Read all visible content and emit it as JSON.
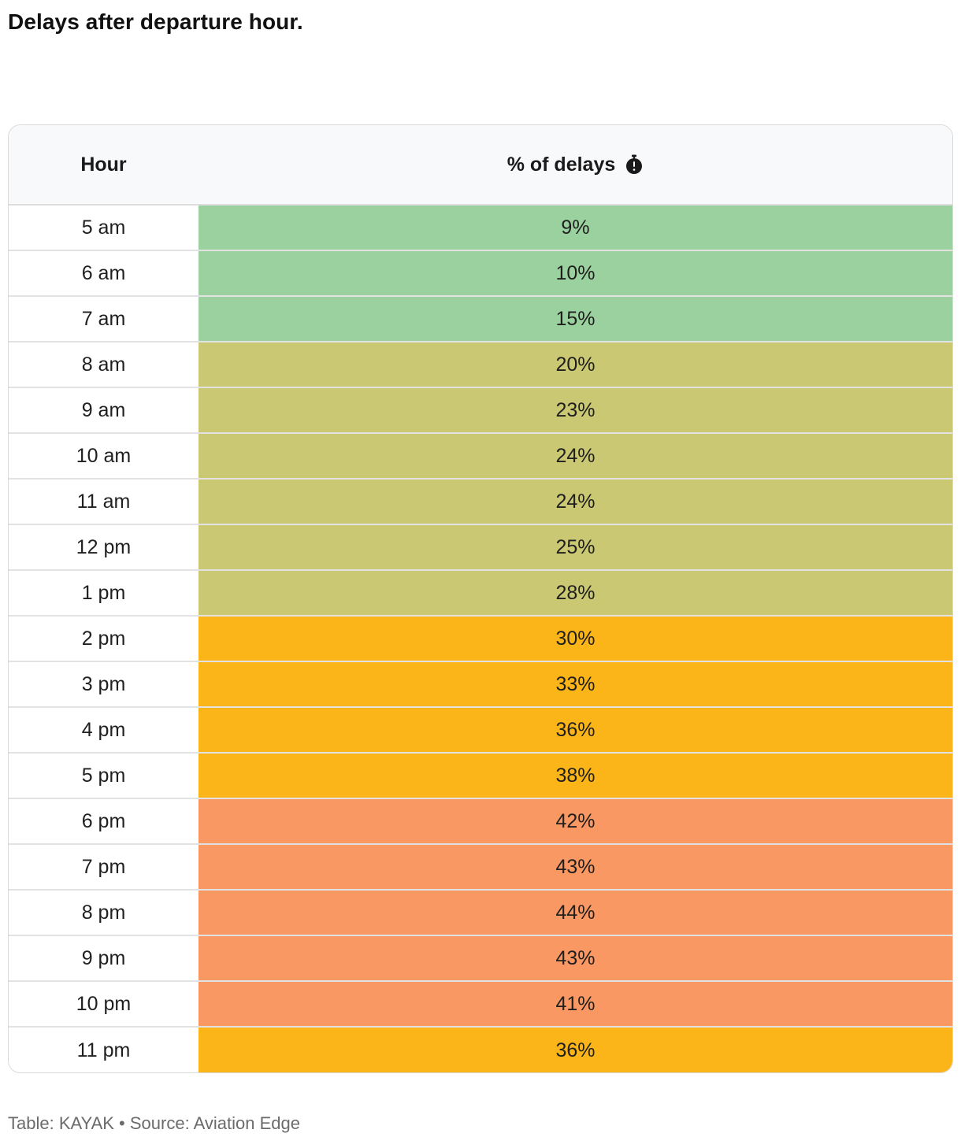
{
  "title": "Delays after departure hour.",
  "table": {
    "headers": {
      "hour": "Hour",
      "pct": "% of delays",
      "pct_icon": "stopwatch-icon"
    }
  },
  "colors": {
    "low": "#9ad19e",
    "medium": "#cac873",
    "high": "#fbb518",
    "very_high": "#fa9864"
  },
  "chart_data": {
    "type": "table",
    "title": "Delays after departure hour.",
    "columns": [
      "Hour",
      "% of delays"
    ],
    "rows": [
      {
        "hour": "5 am",
        "value": 9,
        "label": "9%",
        "band": "low"
      },
      {
        "hour": "6 am",
        "value": 10,
        "label": "10%",
        "band": "low"
      },
      {
        "hour": "7 am",
        "value": 15,
        "label": "15%",
        "band": "low"
      },
      {
        "hour": "8 am",
        "value": 20,
        "label": "20%",
        "band": "medium"
      },
      {
        "hour": "9 am",
        "value": 23,
        "label": "23%",
        "band": "medium"
      },
      {
        "hour": "10 am",
        "value": 24,
        "label": "24%",
        "band": "medium"
      },
      {
        "hour": "11 am",
        "value": 24,
        "label": "24%",
        "band": "medium"
      },
      {
        "hour": "12 pm",
        "value": 25,
        "label": "25%",
        "band": "medium"
      },
      {
        "hour": "1 pm",
        "value": 28,
        "label": "28%",
        "band": "medium"
      },
      {
        "hour": "2 pm",
        "value": 30,
        "label": "30%",
        "band": "high"
      },
      {
        "hour": "3 pm",
        "value": 33,
        "label": "33%",
        "band": "high"
      },
      {
        "hour": "4 pm",
        "value": 36,
        "label": "36%",
        "band": "high"
      },
      {
        "hour": "5 pm",
        "value": 38,
        "label": "38%",
        "band": "high"
      },
      {
        "hour": "6 pm",
        "value": 42,
        "label": "42%",
        "band": "very_high"
      },
      {
        "hour": "7 pm",
        "value": 43,
        "label": "43%",
        "band": "very_high"
      },
      {
        "hour": "8 pm",
        "value": 44,
        "label": "44%",
        "band": "very_high"
      },
      {
        "hour": "9 pm",
        "value": 43,
        "label": "43%",
        "band": "very_high"
      },
      {
        "hour": "10 pm",
        "value": 41,
        "label": "41%",
        "band": "very_high"
      },
      {
        "hour": "11 pm",
        "value": 36,
        "label": "36%",
        "band": "high"
      }
    ]
  },
  "footer": {
    "credit": "Table: KAYAK",
    "separator": "•",
    "source": "Source: Aviation Edge"
  }
}
